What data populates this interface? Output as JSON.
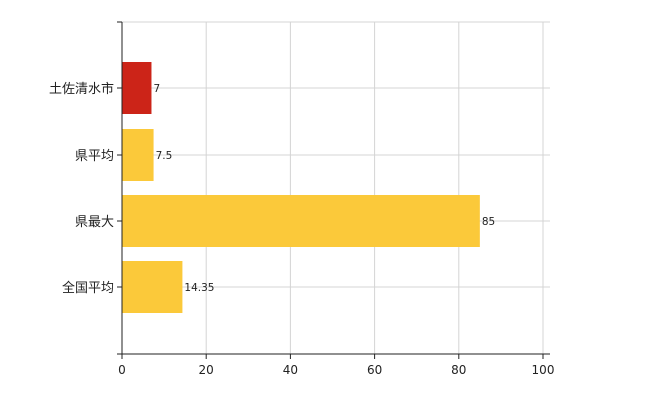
{
  "chart_data": {
    "type": "bar",
    "orientation": "horizontal",
    "categories": [
      "土佐清水市",
      "県平均",
      "県最大",
      "全国平均"
    ],
    "values": [
      7,
      7.5,
      85,
      14.35
    ],
    "value_labels": [
      "7",
      "7.5",
      "85",
      "14.35"
    ],
    "bar_colors": [
      "#cc2418",
      "#fbc93a",
      "#fbc93a",
      "#fbc93a"
    ],
    "xlim": [
      0,
      100
    ],
    "xticks": [
      0,
      20,
      40,
      60,
      80,
      100
    ],
    "xtick_labels": [
      "0",
      "20",
      "40",
      "60",
      "80",
      "100"
    ],
    "grid": true,
    "title": "",
    "xlabel": "",
    "ylabel": ""
  }
}
